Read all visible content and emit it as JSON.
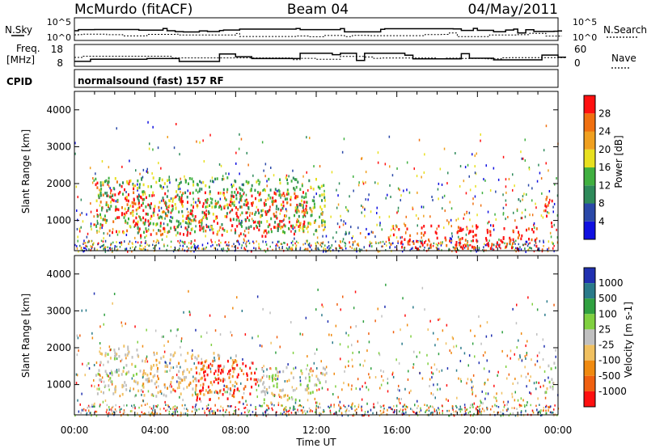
{
  "header": {
    "station": "McMurdo (fitACF)",
    "beam": "Beam 04",
    "date": "04/May/2011"
  },
  "noise_panel": {
    "left_label": "N.Sky",
    "left_ticks": [
      "10^5",
      "10^0"
    ],
    "right_label": "N.Search",
    "right_ticks": [
      "10^5",
      "10^0"
    ]
  },
  "freq_panel": {
    "left_label_line1": "Freq.",
    "left_label_line2": "[MHz]",
    "left_ticks": [
      "18",
      "8"
    ],
    "right_label": "Nave",
    "right_ticks": [
      "60",
      "0"
    ]
  },
  "cpid": {
    "label": "CPID",
    "program": "normalsound (fast) 157 RF"
  },
  "colors": {
    "power": [
      "#1010e0",
      "#2a48a8",
      "#2e8a5a",
      "#40b040",
      "#e8e020",
      "#f0a020",
      "#f07010",
      "#ff1010"
    ],
    "velocity": [
      "#ff1010",
      "#f06010",
      "#f08a10",
      "#f0c060",
      "#c0c0c0",
      "#80d040",
      "#30a040",
      "#2a7a8a",
      "#2030b0"
    ]
  },
  "chart_data": [
    {
      "type": "heatmap",
      "title": "Power",
      "ylabel": "Slant Range [km]",
      "ylim": [
        180,
        4500
      ],
      "yticks": [
        "1000",
        "2000",
        "3000",
        "4000"
      ],
      "ytick_values": [
        1000,
        2000,
        3000,
        4000
      ],
      "xlim_hours": [
        0,
        24
      ],
      "colorbar": {
        "label": "Power [dB]",
        "tick_labels": [
          "4",
          "8",
          "12",
          "16",
          "20",
          "24",
          "28"
        ],
        "range": [
          0,
          32
        ]
      },
      "regions": [
        {
          "t0": 1.0,
          "t1": 3.0,
          "r0": 700,
          "r1": 2100,
          "level": 28
        },
        {
          "t0": 3.0,
          "t1": 11.5,
          "r0": 600,
          "r1": 1800,
          "level": 28
        },
        {
          "t0": 1.0,
          "t1": 12.5,
          "r0": 700,
          "r1": 2200,
          "level": 14
        },
        {
          "t0": 11.0,
          "t1": 12.5,
          "r0": 800,
          "r1": 1500,
          "level": 16
        },
        {
          "t0": 15.5,
          "t1": 23.0,
          "r0": 250,
          "r1": 900,
          "level": 28
        },
        {
          "t0": 23.3,
          "t1": 23.8,
          "r0": 800,
          "r1": 1700,
          "level": 28
        }
      ]
    },
    {
      "type": "heatmap",
      "title": "Velocity",
      "ylabel": "Slant Range [km]",
      "ylim": [
        180,
        4500
      ],
      "yticks": [
        "1000",
        "2000",
        "3000",
        "4000"
      ],
      "ytick_values": [
        1000,
        2000,
        3000,
        4000
      ],
      "xlim_hours": [
        0,
        24
      ],
      "colorbar": {
        "label": "Velocity [m s-1]",
        "tick_labels": [
          "1000",
          "500",
          "100",
          "25",
          "-25",
          "-100",
          "-500",
          "-1000"
        ],
        "range": [
          -1000,
          1000
        ]
      },
      "regions": [
        {
          "t0": 1.0,
          "t1": 3.2,
          "r0": 700,
          "r1": 2100,
          "level": 100
        },
        {
          "t0": 3.2,
          "t1": 8.0,
          "r0": 700,
          "r1": 1900,
          "level": 300
        },
        {
          "t0": 6.0,
          "t1": 9.0,
          "r0": 600,
          "r1": 1700,
          "level": 800
        },
        {
          "t0": 9.0,
          "t1": 11.0,
          "r0": 500,
          "r1": 1500,
          "level": -100
        },
        {
          "t0": 11.0,
          "t1": 12.5,
          "r0": 800,
          "r1": 1500,
          "level": -100
        },
        {
          "t0": 23.3,
          "t1": 23.8,
          "r0": 800,
          "r1": 1700,
          "level": -100
        }
      ]
    }
  ],
  "xaxis": {
    "label": "Time UT",
    "ticks": [
      "00:00",
      "04:00",
      "08:00",
      "12:00",
      "16:00",
      "20:00",
      "00:00"
    ]
  }
}
